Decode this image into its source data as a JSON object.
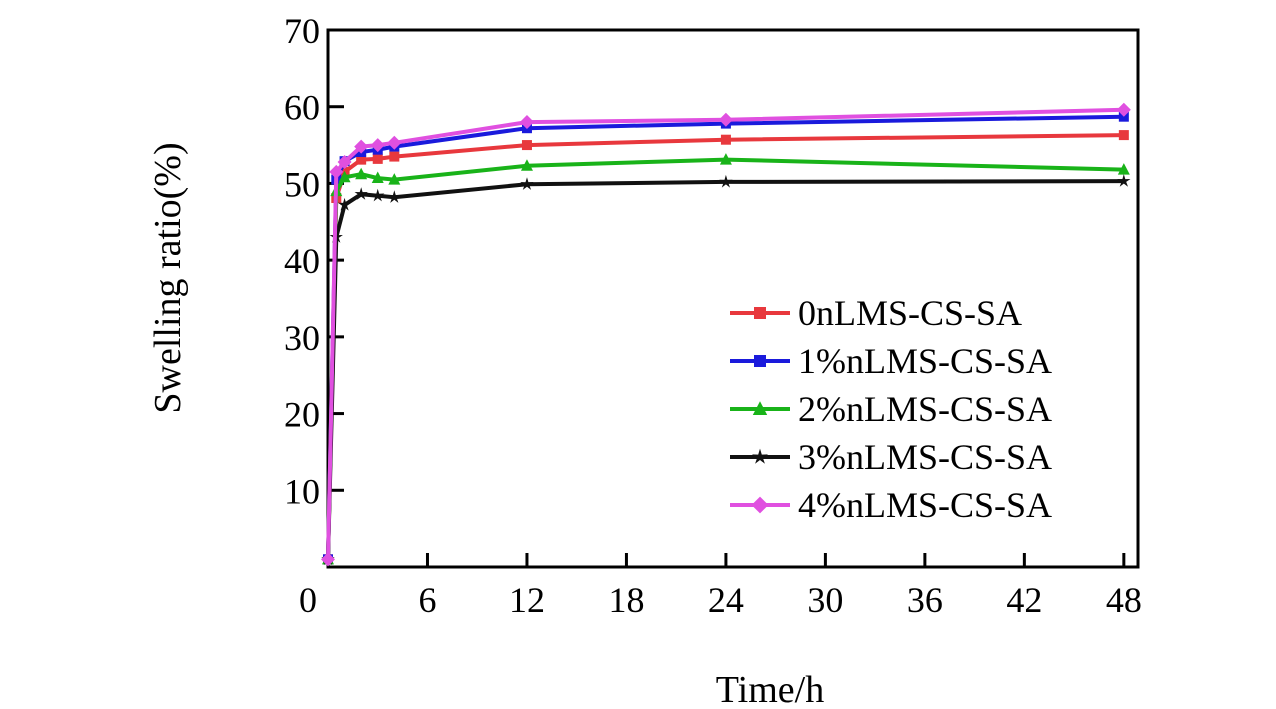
{
  "chart_data": {
    "type": "line",
    "xlabel": "Time/h",
    "ylabel": "Swelling ratio(%)",
    "xlim": [
      0,
      49.5
    ],
    "ylim": [
      0,
      70
    ],
    "xticks": [
      0,
      6,
      12,
      18,
      24,
      30,
      36,
      42,
      48
    ],
    "yticks": [
      10,
      20,
      30,
      40,
      50,
      60,
      70
    ],
    "legend_position": "bottom-right",
    "grid": false,
    "x": [
      0,
      0.5,
      1,
      2,
      3,
      4,
      12,
      24,
      48
    ],
    "series": [
      {
        "name": "0nLMS-CS-SA",
        "color": "#e8383d",
        "marker": "square",
        "values": [
          1,
          48.1,
          51.5,
          53.1,
          53.2,
          53.5,
          55.0,
          55.7,
          56.3
        ]
      },
      {
        "name": "1%nLMS-CS-SA",
        "color": "#1a1adc",
        "marker": "square",
        "values": [
          1,
          50.5,
          52.9,
          54.1,
          54.4,
          54.8,
          57.2,
          57.8,
          58.7
        ]
      },
      {
        "name": "2%nLMS-CS-SA",
        "color": "#19b319",
        "marker": "triangle",
        "values": [
          1,
          49.0,
          50.8,
          51.2,
          50.7,
          50.5,
          52.3,
          53.1,
          51.8
        ]
      },
      {
        "name": "3%nLMS-CS-SA",
        "color": "#111111",
        "marker": "star",
        "values": [
          1,
          43.0,
          47.2,
          48.6,
          48.4,
          48.2,
          49.9,
          50.2,
          50.3
        ]
      },
      {
        "name": "4%nLMS-CS-SA",
        "color": "#e050e0",
        "marker": "diamond",
        "values": [
          1,
          51.5,
          52.8,
          54.8,
          55.0,
          55.3,
          58.0,
          58.3,
          59.6
        ]
      }
    ]
  }
}
